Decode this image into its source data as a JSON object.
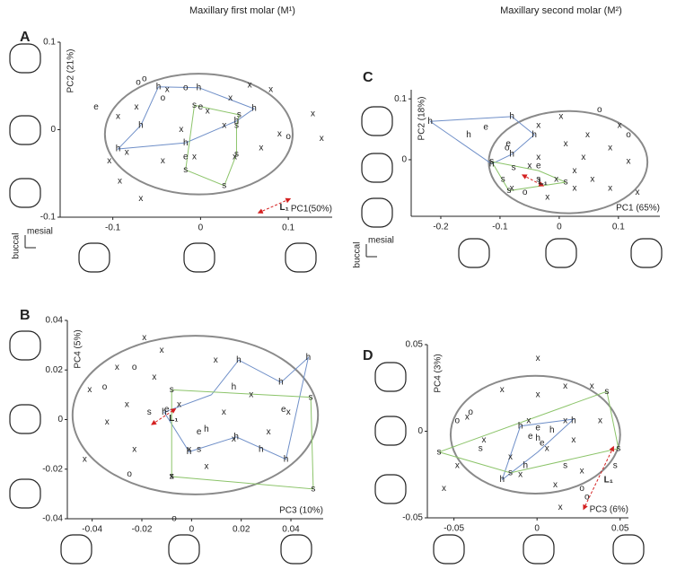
{
  "headers": [
    "Maxillary first molar (M¹)",
    "Maxillary second molar (M²)"
  ],
  "chart_data": [
    {
      "type": "scatter",
      "panel": "A",
      "xlabel": "PC1(50%)",
      "ylabel": "PC2 (21%)",
      "xlim": [
        -0.16,
        0.15
      ],
      "ylim": [
        -0.1,
        0.1
      ],
      "xticks": [
        -0.1,
        0,
        0.1
      ],
      "yticks": [
        -0.1,
        0,
        0.1
      ],
      "ellipse": {
        "cx": -0.002,
        "cy": -0.005,
        "rx": 0.107,
        "ry": 0.069
      },
      "orientation": {
        "mesial": "mesial",
        "buccal": "buccal"
      },
      "series": [
        {
          "kind": "line",
          "color": "#6f8fc8",
          "x": [
            -0.048,
            -0.002,
            0.061,
            0.041,
            -0.017,
            -0.094,
            -0.068,
            -0.048
          ],
          "y": [
            0.049,
            0.048,
            0.024,
            0.01,
            -0.015,
            -0.022,
            0.005,
            0.049
          ]
        },
        {
          "kind": "line",
          "color": "#8cc46a",
          "x": [
            -0.007,
            0.044,
            0.041,
            0.041,
            0.027,
            -0.017,
            -0.007
          ],
          "y": [
            0.028,
            0.017,
            0.005,
            -0.028,
            -0.064,
            -0.046,
            0.028
          ]
        },
        {
          "kind": "points",
          "marker": "x",
          "color": "#7a7a7a",
          "x": [
            0.056,
            0.08,
            0.034,
            -0.073,
            0.128,
            -0.094,
            0.09,
            0.069,
            -0.084,
            -0.043,
            -0.092,
            -0.068,
            0.039,
            -0.022,
            0.008,
            -0.038,
            -0.104,
            0.138,
            0.027,
            -0.007
          ],
          "y": [
            0.051,
            0.046,
            0.036,
            0.026,
            0.018,
            0.015,
            -0.005,
            -0.021,
            -0.026,
            -0.036,
            -0.059,
            -0.079,
            -0.031,
            0,
            0.021,
            0.046,
            -0.036,
            -0.01,
            0.005,
            -0.031
          ]
        },
        {
          "kind": "points",
          "marker": "o",
          "color": "#8a8a8a",
          "x": [
            -0.071,
            -0.064,
            -0.043,
            -0.017,
            0.1
          ],
          "y": [
            0.054,
            0.058,
            0.036,
            0.048,
            -0.008
          ]
        },
        {
          "kind": "points",
          "marker": "h",
          "color": "#2b3f8c",
          "x": [
            -0.048,
            -0.002,
            0.061,
            0.041,
            -0.017,
            -0.094,
            -0.068
          ],
          "y": [
            0.049,
            0.048,
            0.024,
            0.01,
            -0.015,
            -0.022,
            0.005
          ]
        },
        {
          "kind": "points",
          "marker": "e",
          "color": "#2aa0d8",
          "x": [
            -0.119,
            -0.017,
            0
          ],
          "y": [
            0.026,
            -0.031,
            0.026
          ]
        },
        {
          "kind": "points",
          "marker": "s",
          "color": "#4caf2a",
          "x": [
            -0.007,
            0.044,
            0.041,
            0.041,
            0.027,
            -0.017
          ],
          "y": [
            0.028,
            0.017,
            0.005,
            -0.028,
            -0.064,
            -0.046
          ]
        }
      ],
      "annotation": {
        "text": "L₁",
        "x": [
          0.066,
          0.102
        ],
        "y": [
          -0.095,
          -0.079
        ]
      }
    },
    {
      "type": "scatter",
      "panel": "B",
      "xlabel": "PC3 (10%)",
      "ylabel": "PC4 (5%)",
      "xlim": [
        -0.05,
        0.053
      ],
      "ylim": [
        -0.04,
        0.04
      ],
      "xticks": [
        -0.04,
        -0.02,
        0,
        0.02,
        0.04
      ],
      "yticks": [
        -0.04,
        -0.02,
        0,
        0.02,
        0.04
      ],
      "ellipse": {
        "cx": 0.0015,
        "cy": 0.0018,
        "rx": 0.0494,
        "ry": 0.032
      },
      "series": [
        {
          "kind": "line",
          "color": "#6f8fc8",
          "x": [
            0.008,
            0.019,
            0.036,
            0.047,
            0.038,
            0.018,
            -0.001,
            -0.011,
            0.008
          ],
          "y": [
            0.01,
            0.024,
            0.015,
            0.025,
            -0.016,
            -0.007,
            -0.013,
            0.003,
            0.01
          ]
        },
        {
          "kind": "line",
          "color": "#8cc46a",
          "x": [
            -0.008,
            0.048,
            0.049,
            -0.008,
            -0.008
          ],
          "y": [
            0.012,
            0.009,
            -0.028,
            -0.023,
            0.012
          ]
        },
        {
          "kind": "points",
          "marker": "x",
          "color": "#7a7a7a",
          "x": [
            -0.019,
            -0.012,
            -0.03,
            -0.041,
            -0.034,
            -0.023,
            0.0097,
            0.024,
            0.031,
            0.017,
            0.006,
            -0.008,
            -0.043,
            0.039,
            -0.005,
            -0.026,
            -0.015,
            0.013,
            -0.001
          ],
          "y": [
            0.033,
            0.028,
            0.021,
            0.012,
            -0.001,
            -0.012,
            0.024,
            0.01,
            -0.005,
            -0.008,
            -0.019,
            -0.023,
            -0.016,
            0.003,
            0.006,
            0.006,
            0.017,
            0.003,
            -0.012
          ]
        },
        {
          "kind": "points",
          "marker": "o",
          "color": "#8a8a8a",
          "x": [
            -0.035,
            -0.023,
            -0.025,
            -0.007
          ],
          "y": [
            0.013,
            0.021,
            -0.022,
            -0.04
          ]
        },
        {
          "kind": "points",
          "marker": "h",
          "color": "#2b3f8c",
          "x": [
            0.047,
            0.036,
            0.019,
            0.038,
            0.028,
            0.018,
            0.006,
            -0.001,
            -0.011,
            0.017
          ],
          "y": [
            0.025,
            0.015,
            0.024,
            -0.016,
            -0.012,
            -0.007,
            -0.004,
            -0.013,
            0.003,
            0.013
          ]
        },
        {
          "kind": "points",
          "marker": "e",
          "color": "#2aa0d8",
          "x": [
            0.037,
            -0.01,
            0.003
          ],
          "y": [
            0.004,
            0.004,
            -0.005
          ]
        },
        {
          "kind": "points",
          "marker": "s",
          "color": "#4caf2a",
          "x": [
            -0.008,
            0.048,
            0.049,
            -0.008,
            -0.017,
            0.003
          ],
          "y": [
            0.012,
            0.009,
            -0.028,
            -0.023,
            0.003,
            -0.012
          ]
        }
      ],
      "annotation": {
        "text": "L₁",
        "x": [
          -0.016,
          -0.0065
        ],
        "y": [
          -0.002,
          0.0043
        ]
      }
    },
    {
      "type": "scatter",
      "panel": "C",
      "xlabel": "PC1 (65%)",
      "ylabel": "PC2 (18%)",
      "xlim": [
        -0.25,
        0.17
      ],
      "ylim": [
        -0.093,
        0.115
      ],
      "xticks": [
        -0.2,
        -0.1,
        0,
        0.1
      ],
      "yticks": [
        0,
        0.1
      ],
      "ellipse": {
        "cx": 0.015,
        "cy": -0.004,
        "rx": 0.134,
        "ry": 0.084
      },
      "orientation": {
        "mesial": "mesial",
        "buccal": "buccal"
      },
      "series": [
        {
          "kind": "line",
          "color": "#6f8fc8",
          "x": [
            -0.218,
            -0.08,
            -0.042,
            -0.08,
            -0.114,
            -0.218
          ],
          "y": [
            0.063,
            0.071,
            0.041,
            0.009,
            -0.007,
            0.063
          ]
        },
        {
          "kind": "line",
          "color": "#8cc46a",
          "x": [
            -0.114,
            -0.035,
            0.011,
            -0.085,
            -0.114
          ],
          "y": [
            -0.003,
            -0.018,
            -0.037,
            -0.051,
            -0.003
          ]
        },
        {
          "kind": "points",
          "marker": "x",
          "color": "#7a7a7a",
          "x": [
            -0.035,
            0.003,
            0.011,
            0.048,
            0.086,
            0.117,
            0.132,
            0.026,
            -0.005,
            -0.05,
            0.056,
            -0.02,
            -0.08,
            0.086,
            0.041,
            -0.035,
            0.102,
            0.026
          ],
          "y": [
            0.056,
            0.071,
            0.026,
            0.041,
            0.019,
            -0.003,
            -0.054,
            -0.018,
            -0.032,
            -0.01,
            -0.032,
            -0.062,
            -0.047,
            -0.047,
            0.004,
            0.004,
            0.056,
            -0.047
          ]
        },
        {
          "kind": "points",
          "marker": "o",
          "color": "#8a8a8a",
          "x": [
            0.068,
            -0.088,
            0.117,
            -0.058
          ],
          "y": [
            0.082,
            0.019,
            0.041,
            -0.054
          ]
        },
        {
          "kind": "points",
          "marker": "h",
          "color": "#2b3f8c",
          "x": [
            -0.218,
            -0.08,
            -0.042,
            -0.08,
            -0.153,
            -0.114
          ],
          "y": [
            0.063,
            0.071,
            0.041,
            0.009,
            0.041,
            -0.007
          ]
        },
        {
          "kind": "points",
          "marker": "e",
          "color": "#2aa0d8",
          "x": [
            -0.124,
            -0.086,
            -0.035
          ],
          "y": [
            0.053,
            0.026,
            -0.01
          ]
        },
        {
          "kind": "points",
          "marker": "s",
          "color": "#4caf2a",
          "x": [
            -0.114,
            -0.077,
            -0.085,
            -0.035,
            0.011,
            -0.095
          ],
          "y": [
            -0.003,
            -0.013,
            -0.051,
            -0.032,
            -0.037,
            -0.032
          ]
        }
      ],
      "annotation": {
        "text": "L₁",
        "x": [
          -0.062,
          -0.027
        ],
        "y": [
          -0.025,
          -0.043
        ]
      }
    },
    {
      "type": "scatter",
      "panel": "D",
      "xlabel": "PC3 (6%)",
      "ylabel": "PC4 (3%)",
      "xlim": [
        -0.066,
        0.055
      ],
      "ylim": [
        -0.05,
        0.05
      ],
      "xticks": [
        -0.05,
        0,
        0.05
      ],
      "yticks": [
        -0.05,
        0,
        0.05
      ],
      "ellipse": {
        "cx": -0.001,
        "cy": -0.002,
        "rx": 0.051,
        "ry": 0.034
      },
      "series": [
        {
          "kind": "line",
          "color": "#6f8fc8",
          "x": [
            -0.021,
            -0.01,
            0.022,
            0.0005,
            -0.021
          ],
          "y": [
            -0.028,
            0.003,
            0.007,
            -0.012,
            -0.028
          ]
        },
        {
          "kind": "line",
          "color": "#8cc46a",
          "x": [
            -0.059,
            0.042,
            0.049,
            -0.016,
            -0.059
          ],
          "y": [
            -0.012,
            0.023,
            -0.01,
            -0.024,
            -0.012
          ]
        },
        {
          "kind": "points",
          "marker": "x",
          "color": "#7a7a7a",
          "x": [
            -0.021,
            0.0005,
            0.017,
            0.033,
            -0.042,
            -0.032,
            -0.016,
            0.006,
            0.022,
            0.038,
            -0.048,
            -0.01,
            0.011,
            0.027,
            -0.005,
            0.017,
            -0.056,
            0.014,
            0.0005
          ],
          "y": [
            0.024,
            0.021,
            0.026,
            0.026,
            0.008,
            -0.005,
            -0.015,
            -0.01,
            -0.005,
            0.006,
            -0.02,
            -0.025,
            -0.031,
            -0.023,
            0.006,
            0.006,
            -0.033,
            -0.044,
            0.042
          ]
        },
        {
          "kind": "points",
          "marker": "o",
          "color": "#8a8a8a",
          "x": [
            -0.048,
            -0.04,
            0.027,
            0.03
          ],
          "y": [
            0.006,
            0.011,
            -0.033,
            -0.038
          ]
        },
        {
          "kind": "points",
          "marker": "h",
          "color": "#2b3f8c",
          "x": [
            -0.01,
            0.0005,
            0.009,
            -0.007,
            -0.021,
            0.022
          ],
          "y": [
            0.003,
            -0.004,
            0.0005,
            -0.02,
            -0.028,
            0.006
          ]
        },
        {
          "kind": "points",
          "marker": "e",
          "color": "#2aa0d8",
          "x": [
            -0.004,
            0.003,
            0.0005
          ],
          "y": [
            -0.003,
            -0.007,
            0.002
          ]
        },
        {
          "kind": "points",
          "marker": "s",
          "color": "#4caf2a",
          "x": [
            -0.059,
            0.042,
            0.049,
            -0.034,
            0.017,
            -0.016,
            0.047
          ],
          "y": [
            -0.012,
            0.023,
            -0.01,
            -0.01,
            -0.02,
            -0.024,
            -0.02
          ]
        }
      ],
      "annotation": {
        "text": "L₁",
        "x": [
          0.046,
          0.028
        ],
        "y": [
          -0.009,
          -0.045
        ]
      }
    }
  ]
}
